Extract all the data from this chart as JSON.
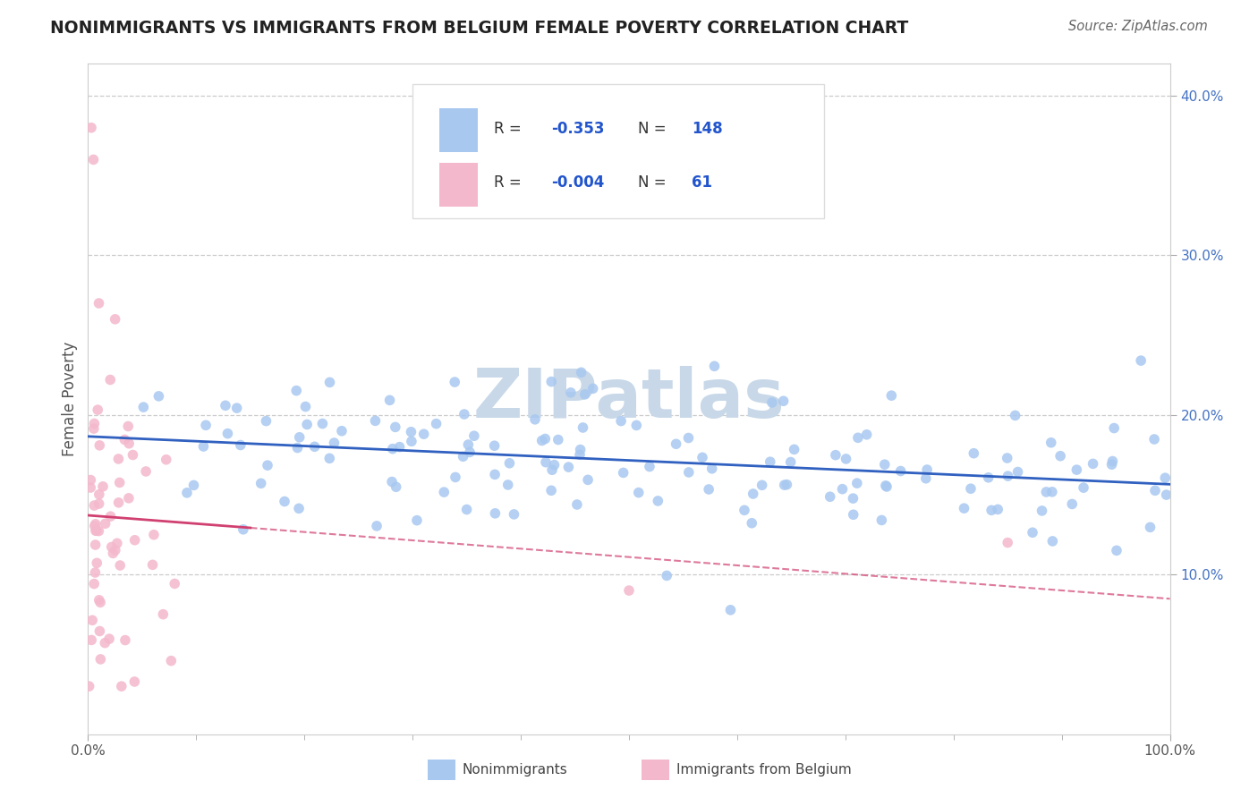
{
  "title": "NONIMMIGRANTS VS IMMIGRANTS FROM BELGIUM FEMALE POVERTY CORRELATION CHART",
  "source": "Source: ZipAtlas.com",
  "ylabel": "Female Poverty",
  "xlim": [
    0,
    100
  ],
  "ylim": [
    0,
    42
  ],
  "legend_label1": "Nonimmigrants",
  "legend_label2": "Immigrants from Belgium",
  "R1": "-0.353",
  "N1": "148",
  "R2": "-0.004",
  "N2": "61",
  "blue_color": "#A8C8F0",
  "pink_color": "#F4B8CC",
  "blue_line_color": "#3060C0",
  "pink_line_color": "#D04070",
  "watermark_color": "#C8D8E8",
  "background_color": "#FFFFFF",
  "grid_color": "#CCCCCC",
  "title_color": "#222222",
  "source_color": "#666666",
  "ylabel_color": "#555555",
  "tick_color": "#4472C4",
  "xtick_label_color": "#555555"
}
